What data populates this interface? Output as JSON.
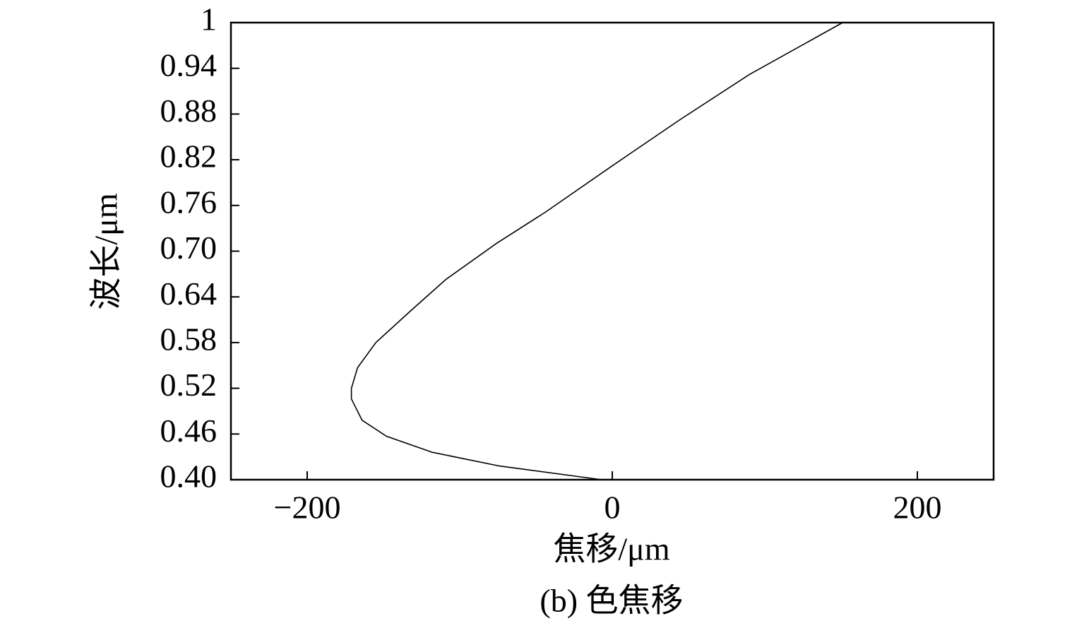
{
  "chart_data": {
    "type": "line",
    "x_label": "焦移/μm",
    "y_label": "波长/μm",
    "caption": "(b) 色焦移",
    "x": [
      -7,
      -74,
      -118,
      -148,
      -164,
      -171,
      -171,
      -167,
      -155,
      -132,
      -109,
      -76,
      -44,
      0,
      44,
      90,
      151
    ],
    "values": [
      0.4,
      0.418,
      0.436,
      0.457,
      0.478,
      0.506,
      0.52,
      0.547,
      0.58,
      0.622,
      0.663,
      0.71,
      0.751,
      0.812,
      0.872,
      0.932,
      1.0
    ],
    "color": "#000000",
    "xlim": [
      -250,
      250
    ],
    "xticks": [
      {
        "value": -200,
        "label": "−200"
      },
      0,
      200
    ],
    "ylim": [
      0.4,
      1
    ],
    "yticks": [
      {
        "value": 0.4,
        "label": "0.40"
      },
      0.46,
      0.52,
      0.58,
      0.64,
      {
        "value": 0.7,
        "label": "0.70"
      },
      0.76,
      0.82,
      0.88,
      0.94,
      1
    ],
    "grid": false
  }
}
